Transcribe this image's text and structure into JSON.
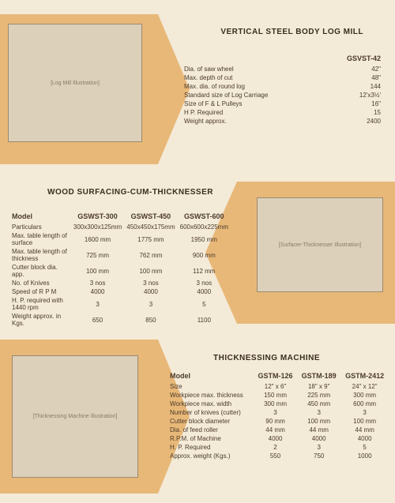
{
  "section1": {
    "title": "VERTICAL STEEL BODY LOG MILL",
    "model_header": "GSVST-42",
    "rows": [
      {
        "label": "Dia. of saw wheel",
        "val": "42\""
      },
      {
        "label": "Max. depth of cut",
        "val": "48\""
      },
      {
        "label": "Max. dia. of round log",
        "val": "144"
      },
      {
        "label": "Standard size of Log Carriage",
        "val": "12'x3½'"
      },
      {
        "label": "Size of F & L Pulleys",
        "val": "16\""
      },
      {
        "label": "H P. Required",
        "val": "15"
      },
      {
        "label": "Weight approx.",
        "val": "2400"
      }
    ],
    "illustration_label": "[Log Mill Illustration]"
  },
  "section2": {
    "title": "WOOD SURFACING-CUM-THICKNESSER",
    "col_label": "Model",
    "models": [
      "GSWST-300",
      "GSWST-450",
      "GSWST-600"
    ],
    "rows": [
      {
        "label": "Particulars",
        "vals": [
          "300x300x125mm",
          "450x450x175mm",
          "600x600x225mm"
        ]
      },
      {
        "label": "Max. table length of surface",
        "vals": [
          "1600 mm",
          "1775 mm",
          "1950 mm"
        ]
      },
      {
        "label": "Max. table length of thickness",
        "vals": [
          "725 mm",
          "762 mm",
          "900 mm"
        ]
      },
      {
        "label": "Cutter block dia. app.",
        "vals": [
          "100 mm",
          "100 mm",
          "112 mm"
        ]
      },
      {
        "label": "No. of Knives",
        "vals": [
          "3 nos",
          "3 nos",
          "3 nos"
        ]
      },
      {
        "label": "Speed of R P M",
        "vals": [
          "4000",
          "4000",
          "4000"
        ]
      },
      {
        "label": "H. P. required with 1440 rpm",
        "vals": [
          "3",
          "3",
          "5"
        ]
      },
      {
        "label": "Weight approx. in Kgs.",
        "vals": [
          "650",
          "850",
          "1100"
        ]
      }
    ],
    "illustration_label": "[Surfacer-Thicknesser Illustration]"
  },
  "section3": {
    "title": "THICKNESSING MACHINE",
    "col_label": "Model",
    "models": [
      "GSTM-126",
      "GSTM-189",
      "GSTM-2412"
    ],
    "rows": [
      {
        "label": "Size",
        "vals": [
          "12\" x 6\"",
          "18\" x 9\"",
          "24\" x 12\""
        ]
      },
      {
        "label": "Workpiece max. thickness",
        "vals": [
          "150 mm",
          "225 mm",
          "300 mm"
        ]
      },
      {
        "label": "Workpiece max. width",
        "vals": [
          "300 mm",
          "450 mm",
          "600 mm"
        ]
      },
      {
        "label": "Number of knives (cutter)",
        "vals": [
          "3",
          "3",
          "3"
        ]
      },
      {
        "label": "Cutter block diameter",
        "vals": [
          "90 mm",
          "100 mm",
          "100 mm"
        ]
      },
      {
        "label": "Dia. of feed roller",
        "vals": [
          "44 mm",
          "44 mm",
          "44 mm"
        ]
      },
      {
        "label": "R.P.M. of Machine",
        "vals": [
          "4000",
          "4000",
          "4000"
        ]
      },
      {
        "label": "H. P. Required",
        "vals": [
          "2",
          "3",
          "5"
        ]
      },
      {
        "label": "Approx. weight (Kgs.)",
        "vals": [
          "550",
          "750",
          "1000"
        ]
      }
    ],
    "illustration_label": "[Thicknessing Machine Illustration]"
  },
  "colors": {
    "page_bg": "#f4ead8",
    "band_bg": "#e8b878",
    "text": "#4a3a2a"
  }
}
